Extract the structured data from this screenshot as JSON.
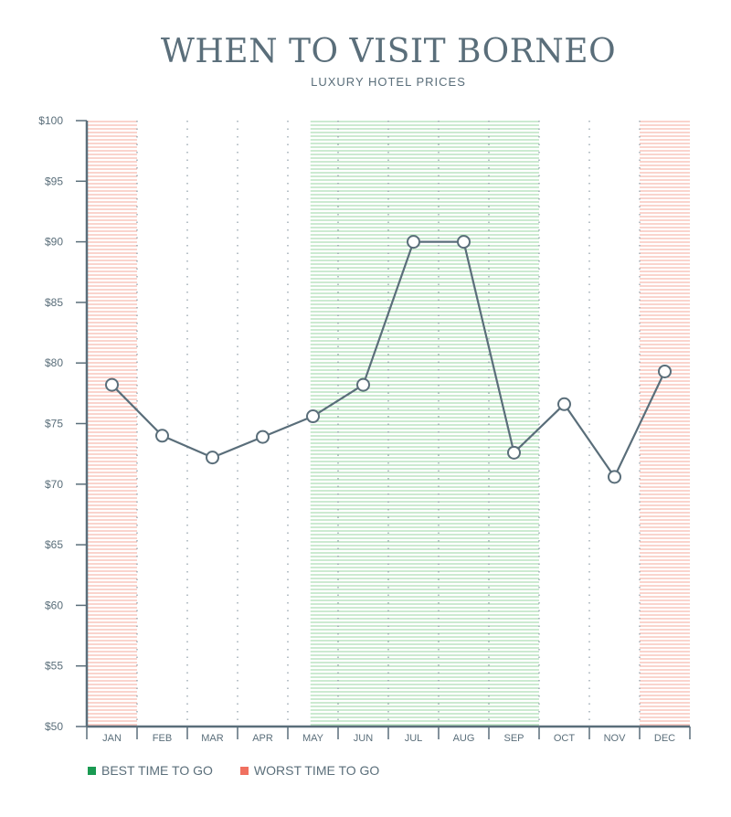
{
  "chart_data": {
    "type": "line",
    "title": "WHEN TO VISIT BORNEO",
    "subtitle": "LUXURY HOTEL PRICES",
    "categories": [
      "JAN",
      "FEB",
      "MAR",
      "APR",
      "MAY",
      "JUN",
      "JUL",
      "AUG",
      "SEP",
      "OCT",
      "NOV",
      "DEC"
    ],
    "values": [
      78.2,
      74.0,
      72.2,
      73.9,
      75.6,
      78.2,
      90.0,
      90.0,
      72.6,
      76.6,
      70.6,
      79.3
    ],
    "ylim": [
      50,
      100
    ],
    "yticks": [
      100,
      95,
      90,
      85,
      80,
      75,
      70,
      65,
      60,
      55,
      50
    ],
    "ytick_labels": [
      "$100",
      "$95",
      "$90",
      "$85",
      "$80",
      "$75",
      "$70",
      "$65",
      "$60",
      "$55",
      "$50"
    ],
    "best_months": [
      "MAY",
      "JUN",
      "JUL",
      "AUG",
      "SEP"
    ],
    "worst_months": [
      "JAN",
      "DEC"
    ],
    "legend": [
      {
        "label": "BEST TIME TO GO",
        "color": "#1a9a52"
      },
      {
        "label": "WORST TIME TO GO",
        "color": "#f07060"
      }
    ],
    "colors": {
      "line": "#5a6e7a",
      "best_band": "#8fcf99",
      "worst_band": "#f4a090",
      "axis": "#5a6e7a"
    }
  }
}
